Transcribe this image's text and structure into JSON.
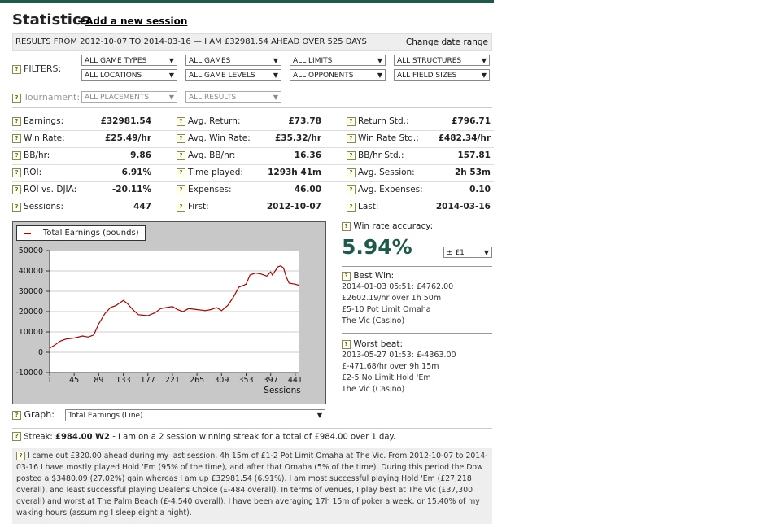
{
  "header": {
    "title": "Statistics",
    "add_session": "Add a new session",
    "add_prefix": "+"
  },
  "summary": {
    "text": "RESULTS FROM 2012-10-07 TO 2014-03-16 — I AM £32981.54 AHEAD OVER 525 DAYS",
    "change_link": "Change date range"
  },
  "filters": {
    "label": "FILTERS:",
    "row1": [
      "ALL GAME TYPES",
      "ALL GAMES",
      "ALL LIMITS",
      "ALL STRUCTURES"
    ],
    "row2": [
      "ALL LOCATIONS",
      "ALL GAME LEVELS",
      "ALL OPPONENTS",
      "ALL FIELD SIZES"
    ],
    "tournament_label": "Tournament:",
    "tournament": [
      "ALL PLACEMENTS",
      "ALL RESULTS"
    ]
  },
  "stats": [
    [
      {
        "name": "Earnings:",
        "value": "£32981.54"
      },
      {
        "name": "Avg. Return:",
        "value": "£73.78"
      },
      {
        "name": "Return Std.:",
        "value": "£796.71"
      }
    ],
    [
      {
        "name": "Win Rate:",
        "value": "£25.49/hr"
      },
      {
        "name": "Avg. Win Rate:",
        "value": "£35.32/hr"
      },
      {
        "name": "Win Rate Std.:",
        "value": "£482.34/hr"
      }
    ],
    [
      {
        "name": "BB/hr:",
        "value": "9.86"
      },
      {
        "name": "Avg. BB/hr:",
        "value": "16.36"
      },
      {
        "name": "BB/hr Std.:",
        "value": "157.81"
      }
    ],
    [
      {
        "name": "ROI:",
        "value": "6.91%"
      },
      {
        "name": "Time played:",
        "value": "1293h 41m"
      },
      {
        "name": "Avg. Session:",
        "value": "2h 53m"
      }
    ],
    [
      {
        "name": "ROI vs. DJIA:",
        "value": "-20.11%"
      },
      {
        "name": "Expenses:",
        "value": "46.00"
      },
      {
        "name": "Avg. Expenses:",
        "value": "0.10"
      }
    ],
    [
      {
        "name": "Sessions:",
        "value": "447"
      },
      {
        "name": "First:",
        "value": "2012-10-07"
      },
      {
        "name": "Last:",
        "value": "2014-03-16"
      }
    ]
  ],
  "chart_data": {
    "type": "line",
    "title": "",
    "xlabel": "Sessions",
    "ylabel": "",
    "legend": "top-left",
    "series": [
      {
        "name": "Total Earnings (pounds)",
        "color": "#aa0000",
        "x": [
          1,
          10,
          20,
          30,
          45,
          60,
          70,
          80,
          89,
          100,
          110,
          120,
          133,
          140,
          150,
          160,
          177,
          190,
          200,
          210,
          221,
          230,
          240,
          250,
          265,
          280,
          290,
          300,
          309,
          320,
          330,
          340,
          353,
          360,
          370,
          380,
          390,
          397,
          400,
          405,
          410,
          415,
          420,
          425,
          430,
          441,
          447
        ],
        "values": [
          2000,
          3500,
          5500,
          6500,
          7000,
          8000,
          7500,
          8500,
          14000,
          19000,
          22000,
          23000,
          25500,
          24000,
          21000,
          18500,
          18000,
          19500,
          21500,
          22000,
          22500,
          21000,
          20000,
          21500,
          21000,
          20500,
          21000,
          22000,
          20500,
          23000,
          27000,
          32000,
          33500,
          38000,
          39000,
          38500,
          37500,
          39500,
          38000,
          40000,
          42000,
          42500,
          41500,
          37000,
          34000,
          33500,
          33000
        ]
      }
    ],
    "xticks": [
      1,
      45,
      89,
      133,
      177,
      221,
      265,
      309,
      353,
      397,
      441
    ],
    "yticks": [
      -10000,
      0,
      10000,
      20000,
      30000,
      40000,
      50000
    ],
    "xlim": [
      1,
      447
    ],
    "ylim": [
      -10000,
      50000
    ],
    "grid": true
  },
  "accuracy": {
    "label": "Win rate accuracy:",
    "value": "5.94%",
    "select": "± £1"
  },
  "best": {
    "label": "Best Win:",
    "lines": [
      "2014-01-03 05:51: £4762.00",
      "£2602.19/hr over 1h 50m",
      "£5-10 Pot Limit Omaha",
      "The Vic (Casino)"
    ]
  },
  "worst": {
    "label": "Worst beat:",
    "lines": [
      "2013-05-27 01:53: £-4363.00",
      "£-471.68/hr over 9h 15m",
      "£2-5 No Limit Hold 'Em",
      "The Vic (Casino)"
    ]
  },
  "graph": {
    "label": "Graph:",
    "select": "Total Earnings (Line)"
  },
  "streak": {
    "label": "Streak:",
    "value": "£984.00 W2",
    "text": " - I am on a 2 session winning streak for a total of £984.00 over 1 day."
  },
  "narrative": "I came out £320.00 ahead during my last session, 4h 15m of £1-2 Pot Limit Omaha at The Vic. From 2012-10-07 to 2014-03-16 I have mostly played Hold 'Em (95% of the time), and after that Omaha (5% of the time). During this period the Dow posted a $3480.09 (27.02%) gain whereas I am up £32981.54 (6.91%). I am most successful playing Hold 'Em (£27,218 overall), and least successful playing Dealer's Choice (£-484 overall). In terms of venues, I play best at The Vic (£37,300 overall) and worst at The Palm Beach (£-4,540 overall). I have been averaging 17h 15m of poker a week, or 15.40% of my waking hours (assuming I sleep eight a night)."
}
